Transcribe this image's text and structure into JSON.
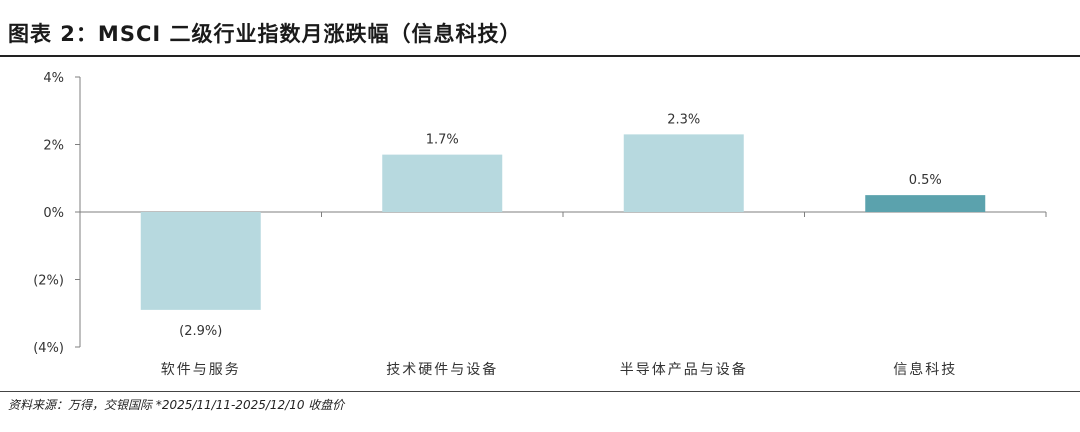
{
  "figure_title": "图表 2：MSCI 二级行业指数月涨跌幅（信息科技）",
  "source_note": "资料来源：万得，交银国际  *2025/11/11-2025/12/10 收盘价",
  "colors": {
    "bar_light": "#b7d9df",
    "bar_dark": "#5ba2ad",
    "axis": "#7f7f7f",
    "text": "#333333"
  },
  "chart_data": {
    "type": "bar",
    "categories": [
      "软件与服务",
      "技术硬件与设备",
      "半导体产品与设备",
      "信息科技"
    ],
    "values": [
      -2.9,
      1.7,
      2.3,
      0.5
    ],
    "data_labels": [
      "(2.9%)",
      "1.7%",
      "2.3%",
      "0.5%"
    ],
    "highlight_index": 3,
    "ylim": [
      -4,
      4
    ],
    "yticks": [
      4,
      2,
      0,
      -2,
      -4
    ],
    "ytick_labels": [
      "4%",
      "2%",
      "0%",
      "(2%)",
      "(4%)"
    ],
    "grid": false,
    "legend": "none"
  }
}
